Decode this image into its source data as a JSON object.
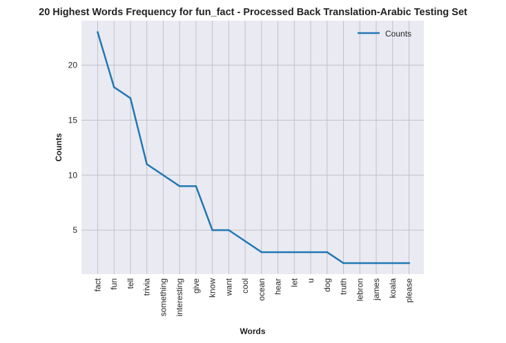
{
  "chart_data": {
    "type": "line",
    "title": "20 Highest Words Frequency for fun_fact - Processed Back Translation-Arabic Testing Set",
    "xlabel": "Words",
    "ylabel": "Counts",
    "categories": [
      "fact",
      "fun",
      "tell",
      "trivia",
      "something",
      "interesting",
      "give",
      "know",
      "want",
      "cool",
      "ocean",
      "hear",
      "let",
      "u",
      "dog",
      "truth",
      "lebron",
      "james",
      "koala",
      "please"
    ],
    "series": [
      {
        "name": "Counts",
        "values": [
          23,
          18,
          17,
          11,
          10,
          9,
          9,
          5,
          5,
          4,
          3,
          3,
          3,
          3,
          3,
          2,
          2,
          2,
          2,
          2
        ]
      }
    ],
    "ylim": [
      1.0,
      24.05
    ],
    "yticks": [
      5,
      10,
      15,
      20
    ],
    "grid": true,
    "legend": "top-right",
    "colors": {
      "line": "#1f77b4",
      "plot_background": "#eaeaf2",
      "grid": "#c0c0c8"
    }
  }
}
